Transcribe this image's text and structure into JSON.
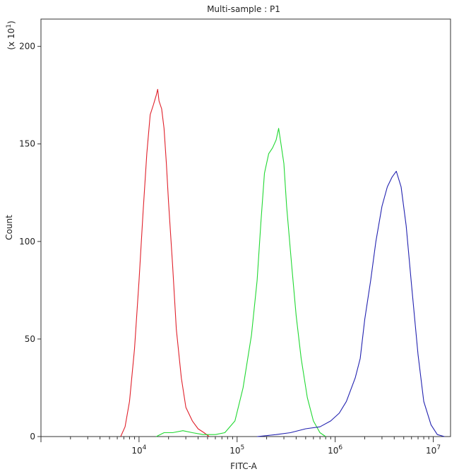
{
  "chart_data": {
    "type": "line",
    "title": "Multi-sample : P1",
    "xlabel": "FITC-A",
    "ylabel": "Count",
    "y_multiplier": "(x 10",
    "y_multiplier_exp": "1",
    "y_multiplier_close": ")",
    "x_scale": "log",
    "xlim": [
      1000,
      15000000
    ],
    "ylim": [
      0,
      214
    ],
    "x_ticks": [
      {
        "value": 10000,
        "base": "10",
        "exp": "4"
      },
      {
        "value": 100000,
        "base": "10",
        "exp": "5"
      },
      {
        "value": 1000000,
        "base": "10",
        "exp": "6"
      },
      {
        "value": 10000000,
        "base": "10",
        "exp": "7"
      }
    ],
    "y_ticks": [
      {
        "value": 0,
        "label": "0"
      },
      {
        "value": 50,
        "label": "50"
      },
      {
        "value": 100,
        "label": "100"
      },
      {
        "value": 150,
        "label": "150"
      },
      {
        "value": 200,
        "label": "200"
      }
    ],
    "grid": false,
    "series": [
      {
        "color": "#e0202a",
        "x": [
          6500,
          7200,
          8000,
          9000,
          10000,
          11000,
          12000,
          13000,
          14000,
          15000,
          15500,
          16000,
          17000,
          18000,
          19000,
          20000,
          22000,
          24000,
          27000,
          30000,
          35000,
          40000,
          46000,
          52000
        ],
        "y": [
          0,
          5,
          18,
          45,
          80,
          115,
          145,
          165,
          170,
          175,
          178,
          172,
          168,
          158,
          140,
          120,
          88,
          55,
          30,
          15,
          8,
          4,
          2,
          0
        ]
      },
      {
        "color": "#21d832",
        "x": [
          15000,
          18000,
          22000,
          28000,
          35000,
          45000,
          60000,
          75000,
          95000,
          115000,
          140000,
          160000,
          175000,
          190000,
          210000,
          230000,
          250000,
          265000,
          280000,
          300000,
          320000,
          360000,
          400000,
          450000,
          520000,
          600000,
          700000,
          800000
        ],
        "y": [
          0,
          2,
          2,
          3,
          2,
          1,
          1,
          2,
          8,
          25,
          52,
          80,
          110,
          135,
          145,
          148,
          152,
          158,
          150,
          140,
          118,
          88,
          62,
          40,
          20,
          8,
          2,
          0
        ]
      },
      {
        "color": "#2222b0",
        "x": [
          160000,
          250000,
          350000,
          500000,
          700000,
          900000,
          1100000,
          1300000,
          1600000,
          1800000,
          2000000,
          2300000,
          2600000,
          3000000,
          3400000,
          3800000,
          4200000,
          4700000,
          5300000,
          6000000,
          7000000,
          8000000,
          9500000,
          11000000,
          13000000
        ],
        "y": [
          0,
          1,
          2,
          4,
          5,
          8,
          12,
          18,
          30,
          40,
          60,
          80,
          100,
          118,
          128,
          133,
          136,
          128,
          108,
          78,
          42,
          18,
          6,
          1,
          0
        ]
      }
    ]
  }
}
